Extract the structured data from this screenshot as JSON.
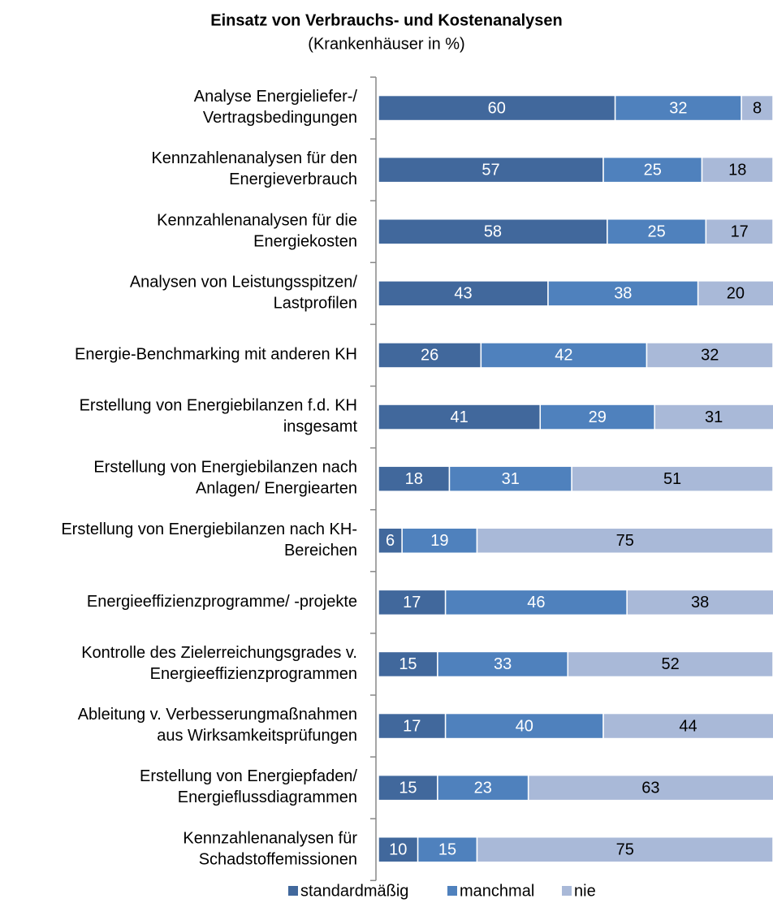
{
  "chart_data": {
    "type": "stacked-barh",
    "title": "Einsatz von Verbrauchs- und Kostenanalysen",
    "subtitle": "(Krankenhäuser in %)",
    "categories": [
      "Analyse Energieliefer-/\nVertragsbedingungen",
      "Kennzahlenanalysen für den\nEnergieverbrauch",
      "Kennzahlenanalysen für die\nEnergiekosten",
      "Analysen von Leistungsspitzen/\nLastprofilen",
      "Energie-Benchmarking mit  anderen KH",
      "Erstellung von Energiebilanzen f.d. KH\ninsgesamt",
      "Erstellung von Energiebilanzen nach\nAnlagen/ Energiearten",
      "Erstellung von Energiebilanzen nach KH-\nBereichen",
      "Energieeffizienzprogramme/ -projekte",
      "Kontrolle des Zielerreichungsgrades v.\nEnergieeffizienzprogrammen",
      "Ableitung v. Verbesserungmaßnahmen\naus Wirksamkeitsprüfungen",
      "Erstellung von Energiepfaden/\nEnergieflussdiagrammen",
      "Kennzahlenanalysen für\nSchadstoffemissionen"
    ],
    "series": [
      {
        "name": "standardmäßig",
        "color": "#41689c",
        "values": [
          60,
          57,
          58,
          43,
          26,
          41,
          18,
          6,
          17,
          15,
          17,
          15,
          10
        ]
      },
      {
        "name": "manchmal",
        "color": "#4f81bd",
        "values": [
          32,
          25,
          25,
          38,
          42,
          29,
          31,
          19,
          46,
          33,
          40,
          23,
          15
        ]
      },
      {
        "name": "nie",
        "color": "#a9b9d8",
        "values": [
          8,
          18,
          17,
          20,
          32,
          31,
          51,
          75,
          38,
          52,
          44,
          63,
          75
        ]
      }
    ]
  }
}
